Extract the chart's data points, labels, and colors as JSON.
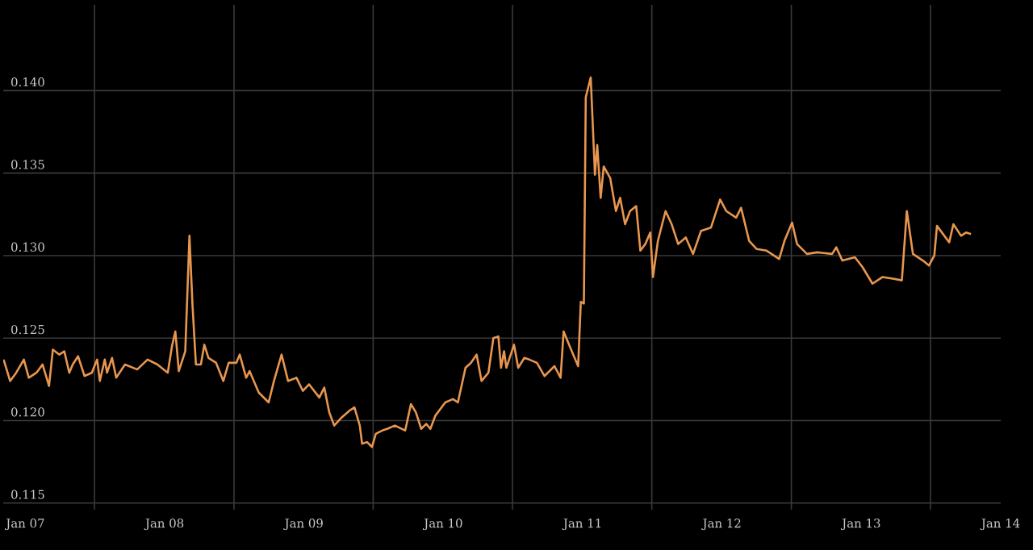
{
  "chart_data": {
    "type": "line",
    "color": "#e8964f",
    "grid": true,
    "xlim": [
      "2006-11-04",
      "2014-01-01"
    ],
    "ylim": [
      0.1146,
      0.1452
    ],
    "xticks": [
      {
        "value": "2007-01-01",
        "label": "Jan 07"
      },
      {
        "value": "2007-07-01",
        "label": null
      },
      {
        "value": "2008-01-01",
        "label": "Jan 08"
      },
      {
        "value": "2008-07-01",
        "label": null
      },
      {
        "value": "2009-01-01",
        "label": "Jan 09"
      },
      {
        "value": "2009-07-01",
        "label": null
      },
      {
        "value": "2010-01-01",
        "label": "Jan 10"
      },
      {
        "value": "2010-07-01",
        "label": null
      },
      {
        "value": "2011-01-01",
        "label": "Jan 11"
      },
      {
        "value": "2011-07-01",
        "label": null
      },
      {
        "value": "2012-01-01",
        "label": "Jan 12"
      },
      {
        "value": "2012-07-01",
        "label": null
      },
      {
        "value": "2013-01-01",
        "label": "Jan 13"
      },
      {
        "value": "2013-07-01",
        "label": null
      },
      {
        "value": "2014-01-01",
        "label": "Jan 14"
      }
    ],
    "yticks": [
      0.115,
      {
        "value": 0.12,
        "label": "0.120"
      },
      0.125,
      {
        "value": 0.13,
        "label": "0.130"
      },
      0.135,
      {
        "value": 0.14,
        "label": "0.140"
      }
    ],
    "x": [
      "2006-11-05",
      "2006-11-22",
      "2006-12-08",
      "2006-12-28",
      "2007-01-10",
      "2007-01-30",
      "2007-02-15",
      "2007-03-04",
      "2007-03-14",
      "2007-03-31",
      "2007-04-13",
      "2007-04-26",
      "2007-05-05",
      "2007-05-19",
      "2007-06-05",
      "2007-06-24",
      "2007-07-08",
      "2007-07-15",
      "2007-07-28",
      "2007-08-03",
      "2007-08-16",
      "2007-08-27",
      "2007-09-19",
      "2007-10-21",
      "2007-11-17",
      "2007-12-13",
      "2008-01-09",
      "2008-01-20",
      "2008-01-29",
      "2008-02-07",
      "2008-02-24",
      "2008-03-06",
      "2008-03-14",
      "2008-03-23",
      "2008-04-05",
      "2008-04-14",
      "2008-04-25",
      "2008-05-15",
      "2008-06-03",
      "2008-06-17",
      "2008-07-07",
      "2008-07-16",
      "2008-08-02",
      "2008-08-11",
      "2008-09-04",
      "2008-09-30",
      "2008-10-14",
      "2008-11-03",
      "2008-11-20",
      "2008-12-12",
      "2008-12-29",
      "2009-01-14",
      "2009-02-10",
      "2009-02-23",
      "2009-03-08",
      "2009-03-21",
      "2009-04-10",
      "2009-04-30",
      "2009-05-13",
      "2009-05-27",
      "2009-06-02",
      "2009-06-15",
      "2009-06-28",
      "2009-07-08",
      "2009-07-25",
      "2009-08-07",
      "2009-08-27",
      "2009-09-23",
      "2009-10-08",
      "2009-10-21",
      "2009-11-04",
      "2009-11-17",
      "2009-11-28",
      "2009-12-11",
      "2010-01-06",
      "2010-01-26",
      "2010-02-08",
      "2010-02-28",
      "2010-03-14",
      "2010-03-29",
      "2010-04-11",
      "2010-04-29",
      "2010-05-12",
      "2010-05-25",
      "2010-06-01",
      "2010-06-09",
      "2010-06-15",
      "2010-07-05",
      "2010-07-16",
      "2010-08-01",
      "2010-08-14",
      "2010-09-03",
      "2010-09-23",
      "2010-10-19",
      "2010-11-04",
      "2010-11-12",
      "2010-11-28",
      "2010-12-20",
      "2010-12-27",
      "2011-01-04",
      "2011-01-09",
      "2011-01-22",
      "2011-02-02",
      "2011-02-08",
      "2011-02-17",
      "2011-02-25",
      "2011-03-14",
      "2011-03-29",
      "2011-04-09",
      "2011-04-22",
      "2011-05-05",
      "2011-05-21",
      "2011-06-01",
      "2011-06-14",
      "2011-06-27",
      "2011-07-04",
      "2011-07-17",
      "2011-08-06",
      "2011-08-22",
      "2011-09-08",
      "2011-09-28",
      "2011-10-17",
      "2011-11-07",
      "2011-12-03",
      "2011-12-27",
      "2012-01-12",
      "2012-02-07",
      "2012-02-20",
      "2012-03-12",
      "2012-04-01",
      "2012-04-27",
      "2012-05-30",
      "2012-06-13",
      "2012-07-03",
      "2012-07-16",
      "2012-08-11",
      "2012-09-07",
      "2012-10-16",
      "2012-10-27",
      "2012-11-12",
      "2012-12-15",
      "2013-01-04",
      "2013-01-30",
      "2013-02-25",
      "2013-03-24",
      "2013-04-17",
      "2013-04-30",
      "2013-05-16",
      "2013-06-11",
      "2013-06-27",
      "2013-07-11",
      "2013-07-18",
      "2013-08-03",
      "2013-08-19",
      "2013-08-30",
      "2013-09-19",
      "2013-10-02",
      "2013-10-15"
    ],
    "values": [
      0.1237,
      0.1224,
      0.1229,
      0.1237,
      0.1226,
      0.1229,
      0.1234,
      0.1221,
      0.1243,
      0.124,
      0.1242,
      0.1229,
      0.1234,
      0.1239,
      0.1227,
      0.1229,
      0.1237,
      0.1224,
      0.1237,
      0.1229,
      0.1238,
      0.1226,
      0.1234,
      0.1231,
      0.1237,
      0.1234,
      0.1229,
      0.1245,
      0.1254,
      0.123,
      0.1242,
      0.1312,
      0.127,
      0.1234,
      0.1234,
      0.1246,
      0.1238,
      0.1235,
      0.1224,
      0.1235,
      0.1235,
      0.124,
      0.1226,
      0.123,
      0.1217,
      0.1211,
      0.1224,
      0.124,
      0.1224,
      0.1226,
      0.1218,
      0.1222,
      0.1214,
      0.122,
      0.1205,
      0.1197,
      0.1202,
      0.1206,
      0.1208,
      0.1197,
      0.1186,
      0.1187,
      0.1184,
      0.1192,
      0.1194,
      0.1195,
      0.1197,
      0.1194,
      0.121,
      0.1205,
      0.1195,
      0.1198,
      0.1195,
      0.1203,
      0.1211,
      0.1213,
      0.1211,
      0.1232,
      0.1235,
      0.124,
      0.1224,
      0.1229,
      0.125,
      0.1251,
      0.1232,
      0.1242,
      0.1232,
      0.1246,
      0.1232,
      0.1238,
      0.1237,
      0.1235,
      0.1227,
      0.1233,
      0.1226,
      0.1254,
      0.1245,
      0.1233,
      0.1272,
      0.1271,
      0.1396,
      0.1408,
      0.1349,
      0.1367,
      0.1335,
      0.1354,
      0.1347,
      0.1327,
      0.1335,
      0.1319,
      0.1327,
      0.133,
      0.1303,
      0.1307,
      0.1314,
      0.1287,
      0.1309,
      0.1327,
      0.1319,
      0.1307,
      0.1311,
      0.1301,
      0.1315,
      0.1317,
      0.1334,
      0.1327,
      0.1323,
      0.1329,
      0.1309,
      0.1304,
      0.1303,
      0.1298,
      0.1309,
      0.132,
      0.1307,
      0.1301,
      0.1302,
      0.1301,
      0.1305,
      0.1297,
      0.1299,
      0.1293,
      0.1283,
      0.1287,
      0.1286,
      0.1285,
      0.1327,
      0.1301,
      0.1297,
      0.1294,
      0.13,
      0.1318,
      0.1313,
      0.1308,
      0.1319,
      0.1312,
      0.1314,
      0.1313
    ]
  }
}
